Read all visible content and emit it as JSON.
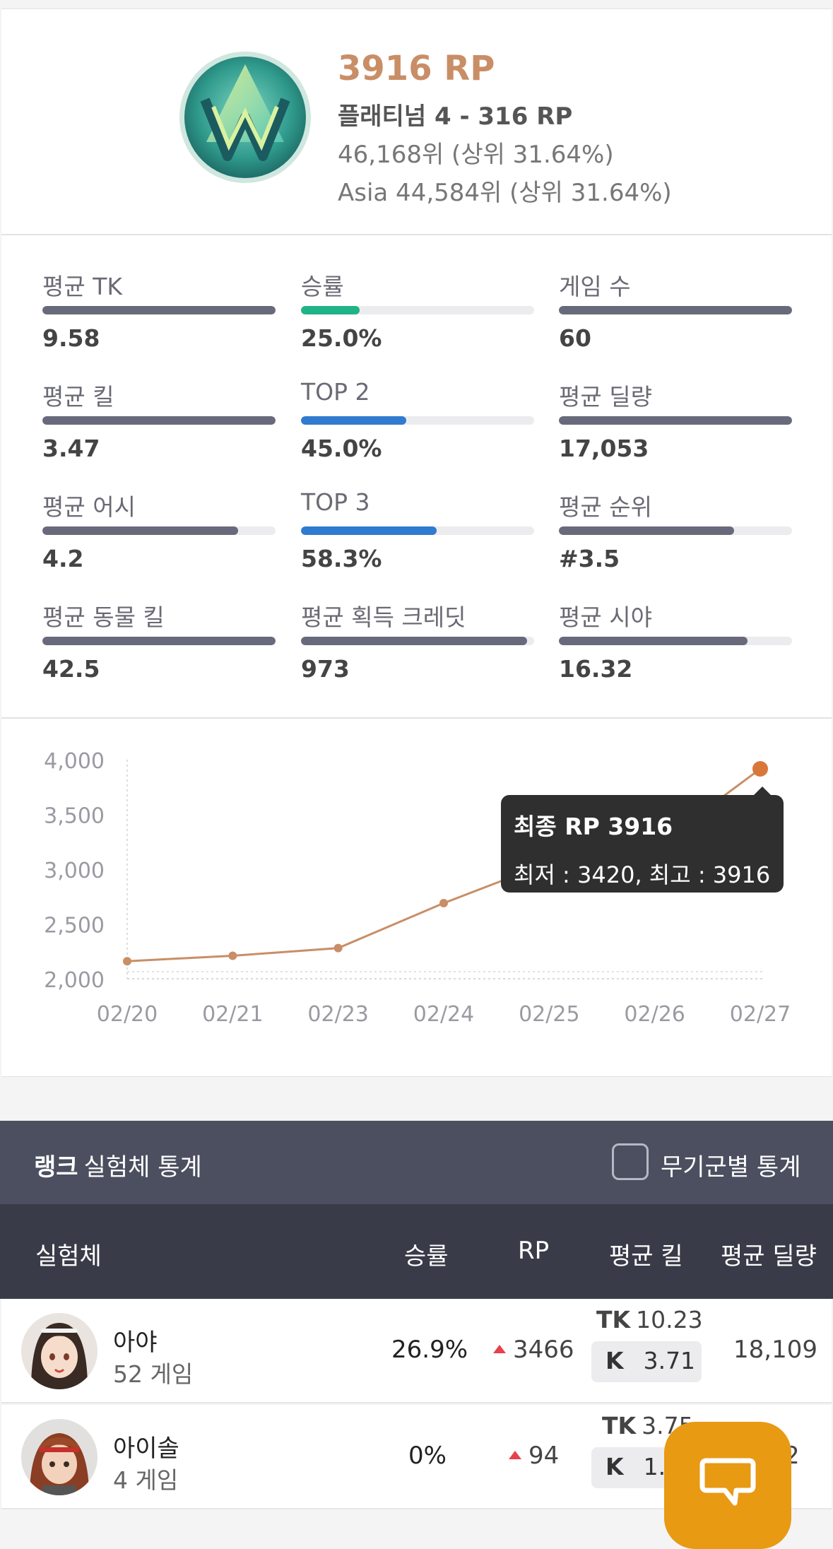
{
  "rank": {
    "rp": "3916 RP",
    "tier": "플래티넘 4 - 316 RP",
    "rank_global": "46,168위 (상위 31.64%)",
    "rank_region": "Asia 44,584위 (상위 31.64%)",
    "emblem_icon": "platinum-emblem-icon"
  },
  "stats": [
    {
      "label": "평균 TK",
      "value": "9.58",
      "fill": 1.0,
      "color": "gray"
    },
    {
      "label": "승률",
      "value": "25.0%",
      "fill": 0.25,
      "color": "green"
    },
    {
      "label": "게임 수",
      "value": "60",
      "fill": 1.0,
      "color": "gray"
    },
    {
      "label": "평균 킬",
      "value": "3.47",
      "fill": 1.0,
      "color": "gray"
    },
    {
      "label": "TOP 2",
      "value": "45.0%",
      "fill": 0.45,
      "color": "blue"
    },
    {
      "label": "평균 딜량",
      "value": "17,053",
      "fill": 1.0,
      "color": "gray"
    },
    {
      "label": "평균 어시",
      "value": "4.2",
      "fill": 0.84,
      "color": "gray"
    },
    {
      "label": "TOP 3",
      "value": "58.3%",
      "fill": 0.583,
      "color": "blue"
    },
    {
      "label": "평균 순위",
      "value": "#3.5",
      "fill": 0.75,
      "color": "gray"
    },
    {
      "label": "평균 동물 킬",
      "value": "42.5",
      "fill": 1.0,
      "color": "gray"
    },
    {
      "label": "평균 획득 크레딧",
      "value": "973",
      "fill": 0.97,
      "color": "gray"
    },
    {
      "label": "평균 시야",
      "value": "16.32",
      "fill": 0.81,
      "color": "gray"
    }
  ],
  "chart_data": {
    "type": "line",
    "categories": [
      "02/20",
      "02/21",
      "02/23",
      "02/24",
      "02/25",
      "02/26",
      "02/27"
    ],
    "values": [
      2160,
      2210,
      2280,
      2690,
      3060,
      3200,
      3916
    ],
    "ylim": [
      2000,
      4000
    ],
    "yticks": [
      "4,000",
      "3,500",
      "3,000",
      "2,500",
      "2,000"
    ],
    "ytick_values": [
      4000,
      3500,
      3000,
      2500,
      2000
    ],
    "line_color": "#c98e66",
    "grid": "dashed"
  },
  "tooltip": {
    "title": "최종 RP 3916",
    "subtitle": "최저 : 3420, 최고 : 3916"
  },
  "section": {
    "title_bold": "랭크",
    "title_rest": "실험체 통계",
    "weapon_toggle": "무기군별 통계"
  },
  "table": {
    "headers": {
      "character": "실험체",
      "winrate": "승률",
      "rp": "RP",
      "avg_kill": "평균 킬",
      "avg_damage": "평균 딜량"
    },
    "rows": [
      {
        "name": "아야",
        "games": "52 게임",
        "winrate": "26.9%",
        "rp": "3466",
        "tk_label": "TK",
        "tk": "10.23",
        "k_label": "K",
        "k": "3.71",
        "damage": "18,109"
      },
      {
        "name": "아이솔",
        "games": "4 게임",
        "winrate": "0%",
        "rp": "94",
        "tk_label": "TK",
        "tk": "3.75",
        "k_label": "K",
        "k": "1.",
        "damage": "2"
      }
    ]
  },
  "fab": {
    "icon": "chat-bubble-icon"
  }
}
